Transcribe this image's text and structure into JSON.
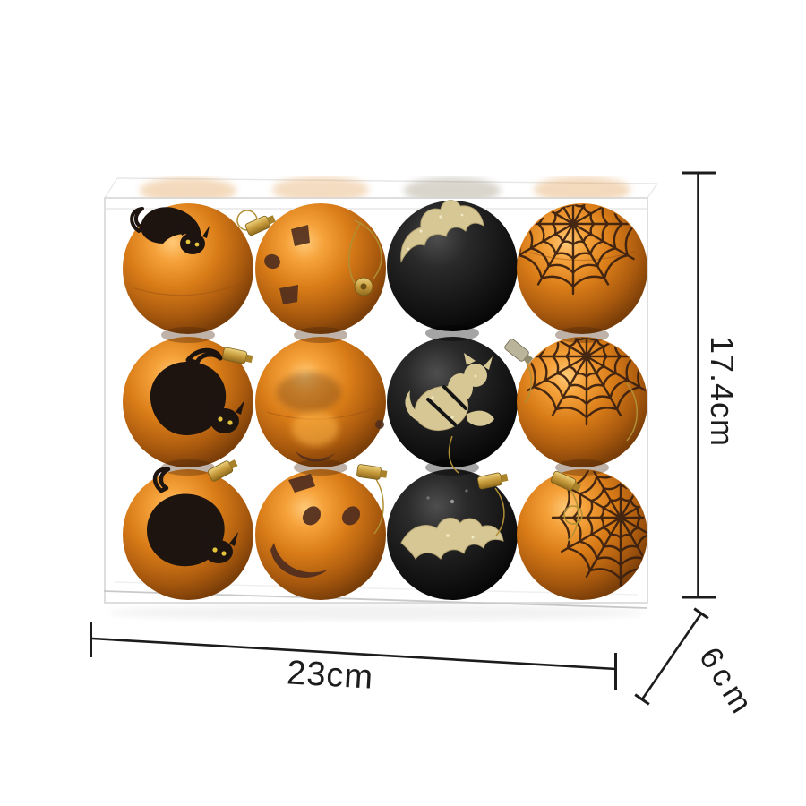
{
  "image": {
    "background_color": "#ffffff",
    "subject": "clear plastic box with 12 Halloween ornament baubles, 4 columns x 3 rows"
  },
  "annotations": {
    "height_label": "17.4cm",
    "width_label": "23cm",
    "depth_label": "6cm",
    "line_color": "#1c1c1c"
  },
  "product": {
    "grid_rows": 3,
    "grid_columns": 4,
    "column_designs": [
      "black cat silhouette on orange ball",
      "dark glitter spots / pumpkin face on orange ball",
      "gold glitter bat on black ball",
      "dark glitter spider web on orange ball"
    ],
    "colors": {
      "orange_ball": "#d97c18",
      "black_ball": "#141414",
      "gold_glitter": "#d4c494",
      "web_brown": "#3b2110",
      "cap_gold": "#c79a3b",
      "cat_black": "#1d1410",
      "cat_eyes": "#e3c43c"
    }
  }
}
